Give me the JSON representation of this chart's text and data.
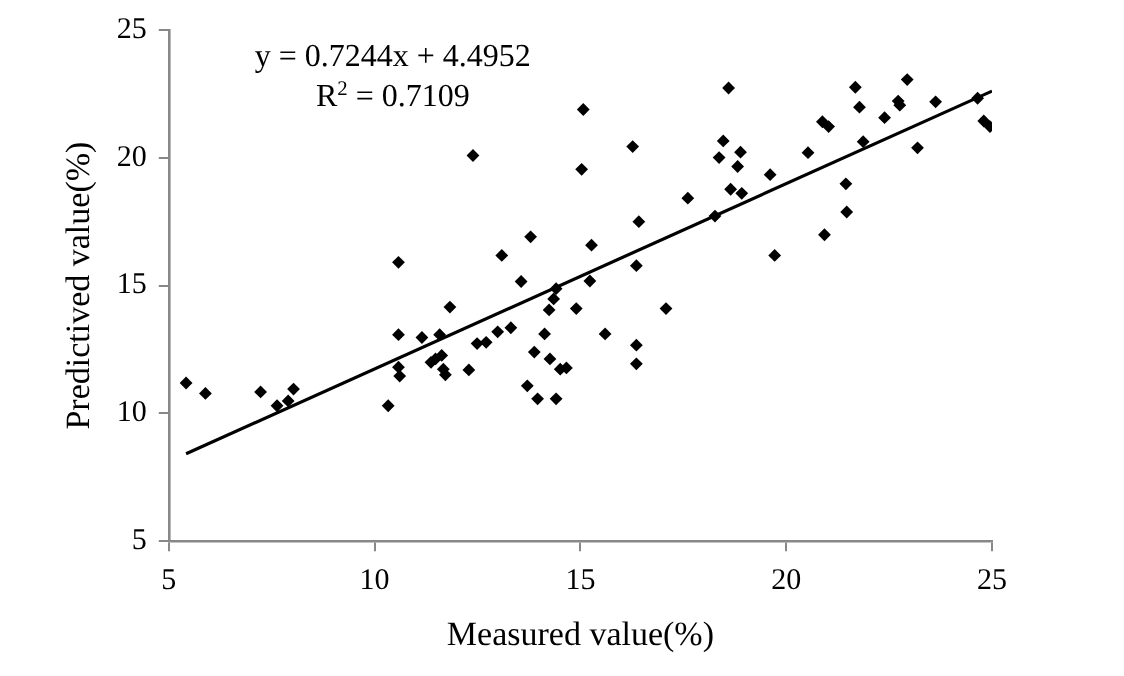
{
  "chart_data": {
    "type": "scatter",
    "xlabel": "Measured value(%)",
    "ylabel": "Predictived value(%)",
    "xlim": [
      5,
      25
    ],
    "xticks": [
      5,
      10,
      15,
      20,
      25
    ],
    "ylim": [
      5,
      25
    ],
    "yticks": [
      5,
      10,
      15,
      20,
      25
    ],
    "grid": false,
    "legend": false,
    "marker": "diamond",
    "annotations": [
      "y = 0.7244x + 4.4952",
      "R$^{2}$ = 0.7109"
    ],
    "series": [
      {
        "color": "#000000",
        "x": [
          5.42,
          5.89,
          7.23,
          7.63,
          7.9,
          8.03,
          10.33,
          10.58,
          10.58,
          10.58,
          10.61,
          11.15,
          11.37,
          11.48,
          11.58,
          11.63,
          11.67,
          11.72,
          11.83,
          12.29,
          12.39,
          12.49,
          12.71,
          12.99,
          13.09,
          13.31,
          13.56,
          13.71,
          13.79,
          13.88,
          13.96,
          14.13,
          14.24,
          14.26,
          14.35,
          14.41,
          14.41,
          14.51,
          14.66,
          14.9,
          15.07,
          15.03,
          15.27,
          15.23,
          15.6,
          16.27,
          16.42,
          16.36,
          16.36,
          16.36,
          17.08,
          17.61,
          18.27,
          18.37,
          18.47,
          18.6,
          18.65,
          18.82,
          18.89,
          18.92,
          19.61,
          19.72,
          20.53,
          20.88,
          21.03,
          20.93,
          21.45,
          21.47,
          21.68,
          21.78,
          21.87,
          22.39,
          22.72,
          22.76,
          22.94,
          23.19,
          23.63,
          24.65,
          24.8,
          24.95
        ],
        "values": [
          11.19,
          10.78,
          10.84,
          10.3,
          10.49,
          10.95,
          10.3,
          15.91,
          13.08,
          11.81,
          11.46,
          12.97,
          12.0,
          12.13,
          13.08,
          12.27,
          11.73,
          11.51,
          14.16,
          11.7,
          20.09,
          12.73,
          12.78,
          13.19,
          16.18,
          13.35,
          15.16,
          11.08,
          16.91,
          12.4,
          10.57,
          13.11,
          14.05,
          12.13,
          14.48,
          14.88,
          10.57,
          11.73,
          11.78,
          14.1,
          21.89,
          19.55,
          16.58,
          15.18,
          13.11,
          20.44,
          17.5,
          15.78,
          12.67,
          11.94,
          14.1,
          18.42,
          17.72,
          20.01,
          20.66,
          22.73,
          18.77,
          19.66,
          20.22,
          18.61,
          19.34,
          16.18,
          20.2,
          21.41,
          21.22,
          16.99,
          18.98,
          17.88,
          22.76,
          21.98,
          20.63,
          21.57,
          22.22,
          22.06,
          23.06,
          20.39,
          22.19,
          22.33,
          21.44,
          21.22
        ]
      },
      {
        "type": "line",
        "color": "#000000",
        "marker": "none",
        "line_style": "solid",
        "x": [
          5.42,
          25
        ],
        "values": [
          8.42,
          22.61
        ]
      }
    ]
  }
}
